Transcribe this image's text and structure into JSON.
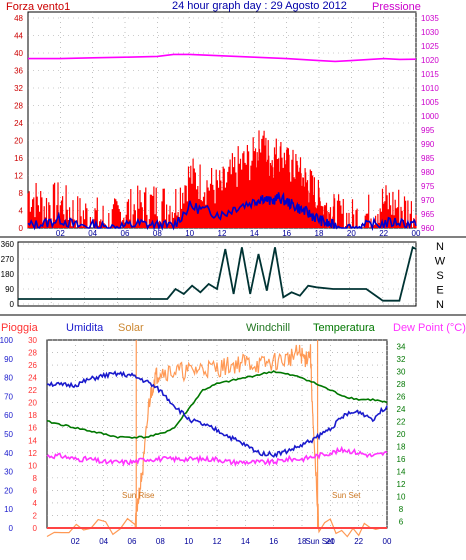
{
  "colors": {
    "wind_avg": "#0000cc",
    "wind_gust": "#ff0000",
    "pressure": "#ff00ff",
    "direction": "#003333",
    "humidity": "#1a1acc",
    "solar": "#ff9955",
    "windchill": "#227722",
    "temperature": "#007700",
    "rain": "#ff4444",
    "dewpoint": "#ff33ff",
    "frame_fill": "#cccccc",
    "x_tick": "#000099"
  },
  "title": "24 hour graph day : 29 Agosto 2012",
  "chart_data": [
    {
      "type": "line",
      "name": "wind-pressure",
      "left_label": "Forza vento1",
      "right_label": "Pressione",
      "x_ticks": [
        "02",
        "04",
        "06",
        "08",
        "10",
        "12",
        "14",
        "16",
        "18",
        "20",
        "22",
        "00"
      ],
      "y_left_ticks": [
        "0",
        "4",
        "8",
        "12",
        "16",
        "20",
        "24",
        "28",
        "32",
        "36",
        "40",
        "44",
        "48"
      ],
      "y_left_range": [
        0,
        48
      ],
      "y_right_ticks": [
        "960",
        "965",
        "970",
        "975",
        "980",
        "985",
        "990",
        "995",
        "1000",
        "1005",
        "1010",
        "1015",
        "1020",
        "1025",
        "1030",
        "1035"
      ],
      "y_right_range": [
        960,
        1035
      ],
      "grid": true,
      "series": [
        {
          "name": "pressure",
          "x": [
            0,
            2,
            4,
            6,
            8,
            9,
            10,
            12,
            14,
            16,
            18,
            19,
            20,
            22,
            23,
            24
          ],
          "y": [
            1020.5,
            1020.5,
            1020.8,
            1021,
            1021.3,
            1022,
            1022,
            1021.5,
            1021,
            1020.5,
            1019.8,
            1019.5,
            1019.8,
            1020.5,
            1020.2,
            1020.3
          ]
        },
        {
          "name": "wind_avg",
          "x": [
            0,
            1,
            2,
            3,
            4,
            5,
            6,
            7,
            8,
            9,
            10,
            11,
            12,
            13,
            14,
            14.5,
            15,
            15.5,
            16,
            16.5,
            17,
            17.5,
            18,
            18.5,
            19,
            20,
            21,
            22,
            23,
            24
          ],
          "y": [
            0.5,
            1,
            2,
            0.5,
            0.5,
            0,
            0.5,
            1,
            0.5,
            0.5,
            5,
            4,
            3,
            5,
            6,
            7,
            6,
            7,
            6,
            5,
            4,
            3,
            2,
            1,
            0.5,
            0,
            0.5,
            1,
            1.5,
            0.5
          ]
        },
        {
          "name": "wind_gust",
          "x": [
            0,
            1,
            2,
            3,
            4,
            5,
            6,
            7,
            8,
            9,
            10,
            11,
            12,
            13,
            14,
            14.5,
            15,
            15.5,
            16,
            16.5,
            17,
            17.5,
            18,
            18.5,
            19,
            20,
            21,
            22,
            23,
            24
          ],
          "y": [
            8,
            5,
            6,
            3,
            3,
            1,
            4,
            5,
            6,
            5,
            12,
            10,
            9,
            14,
            16,
            19,
            15,
            17,
            14,
            13,
            11,
            9,
            6,
            4,
            3,
            2,
            3,
            6,
            5,
            3
          ]
        }
      ]
    },
    {
      "type": "line",
      "name": "wind-direction",
      "y_left_ticks": [
        "0",
        "90",
        "180",
        "270",
        "360"
      ],
      "y_left_range": [
        0,
        360
      ],
      "y_right_ticks": [
        "N",
        "W",
        "S",
        "E",
        "N"
      ],
      "grid": true,
      "series": [
        {
          "name": "direction",
          "x": [
            0,
            2,
            4,
            6,
            8,
            9,
            9.5,
            10,
            10.5,
            11,
            11.5,
            12,
            12.5,
            13,
            13.5,
            14,
            14.5,
            15,
            15.5,
            16,
            16.5,
            17,
            17.5,
            18,
            19,
            20,
            21,
            22,
            23,
            23.8,
            24
          ],
          "y": [
            30,
            30,
            30,
            30,
            30,
            30,
            90,
            60,
            110,
            70,
            120,
            90,
            330,
            60,
            340,
            60,
            300,
            80,
            340,
            40,
            70,
            50,
            110,
            100,
            90,
            90,
            90,
            20,
            20,
            340,
            330
          ]
        }
      ]
    },
    {
      "type": "line",
      "name": "temperature-humidity",
      "labels": {
        "rain": "Pioggia",
        "humidity": "Umidita",
        "solar": "Solar",
        "windchill": "Windchill",
        "temperature": "Temperatura",
        "dewpoint": "Dew Point (°C)"
      },
      "annotations": {
        "sunrise": "Sun Rise",
        "sunset": "Sun Set"
      },
      "x_ticks": [
        "02",
        "04",
        "06",
        "08",
        "10",
        "12",
        "14",
        "16",
        "18",
        "20",
        "Sun Set",
        "22",
        "00"
      ],
      "y_humidity_ticks": [
        "0",
        "10",
        "20",
        "30",
        "40",
        "50",
        "60",
        "70",
        "80",
        "90",
        "100"
      ],
      "y_humidity_range": [
        0,
        100
      ],
      "y_rain_ticks": [
        "0",
        "2",
        "4",
        "6",
        "8",
        "10",
        "12",
        "14",
        "16",
        "18",
        "20",
        "22",
        "24",
        "26",
        "28",
        "30"
      ],
      "y_rain_range": [
        0,
        30
      ],
      "y_temp_ticks": [
        "6",
        "8",
        "10",
        "12",
        "14",
        "16",
        "18",
        "20",
        "22",
        "24",
        "26",
        "28",
        "30",
        "32",
        "34"
      ],
      "y_temp_range": [
        5,
        35
      ],
      "grid": true,
      "series": [
        {
          "name": "humidity",
          "x": [
            0,
            1,
            2,
            3,
            4,
            5,
            6,
            7,
            8,
            9,
            10,
            11,
            12,
            13,
            14,
            15,
            16,
            17,
            18,
            19,
            20,
            21,
            22,
            23,
            24
          ],
          "y": [
            77,
            76,
            76,
            79,
            81,
            82,
            81,
            78,
            73,
            65,
            58,
            55,
            52,
            48,
            44,
            40,
            39,
            41,
            44,
            48,
            53,
            60,
            62,
            58,
            65
          ]
        },
        {
          "name": "temperature",
          "x": [
            0,
            1,
            2,
            3,
            4,
            5,
            6,
            7,
            8,
            9,
            10,
            11,
            12,
            13,
            14,
            15,
            16,
            17,
            18,
            19,
            20,
            21,
            22,
            23,
            24
          ],
          "y": [
            22,
            21.5,
            21,
            20.5,
            20,
            19.5,
            19.5,
            19.5,
            20,
            21,
            24,
            27,
            28,
            28.5,
            29,
            29.5,
            30,
            29.5,
            29,
            28,
            27,
            26,
            25.5,
            25.5,
            25
          ]
        },
        {
          "name": "dewpoint",
          "x": [
            0,
            1,
            2,
            3,
            4,
            5,
            6,
            7,
            8,
            9,
            10,
            11,
            12,
            13,
            14,
            15,
            16,
            17,
            18,
            19,
            20,
            21,
            22,
            23,
            24
          ],
          "y": [
            16.5,
            16.5,
            16,
            16,
            15.5,
            15.5,
            15.5,
            16,
            16,
            16,
            16,
            16,
            16,
            15.5,
            15.5,
            15.5,
            15.5,
            16,
            16,
            16.5,
            17,
            17.5,
            17,
            16.5,
            17
          ]
        },
        {
          "name": "solar",
          "x": [
            0,
            6.2,
            6.4,
            6.8,
            7.2,
            7.6,
            8,
            9,
            10,
            11,
            12,
            13,
            14,
            15,
            16,
            17,
            17.8,
            18.2,
            18.6,
            18.8,
            19.2,
            24
          ],
          "y": [
            0,
            0,
            4,
            10,
            20,
            24,
            25,
            25,
            25,
            25.5,
            25.5,
            26,
            26.5,
            26,
            26.5,
            27,
            28,
            27,
            28,
            15,
            0,
            0
          ]
        },
        {
          "name": "rain",
          "x": [
            0,
            24
          ],
          "y": [
            0,
            0
          ]
        }
      ],
      "sunrise_hour": 6.3,
      "sunset_hour": 19.1
    }
  ]
}
